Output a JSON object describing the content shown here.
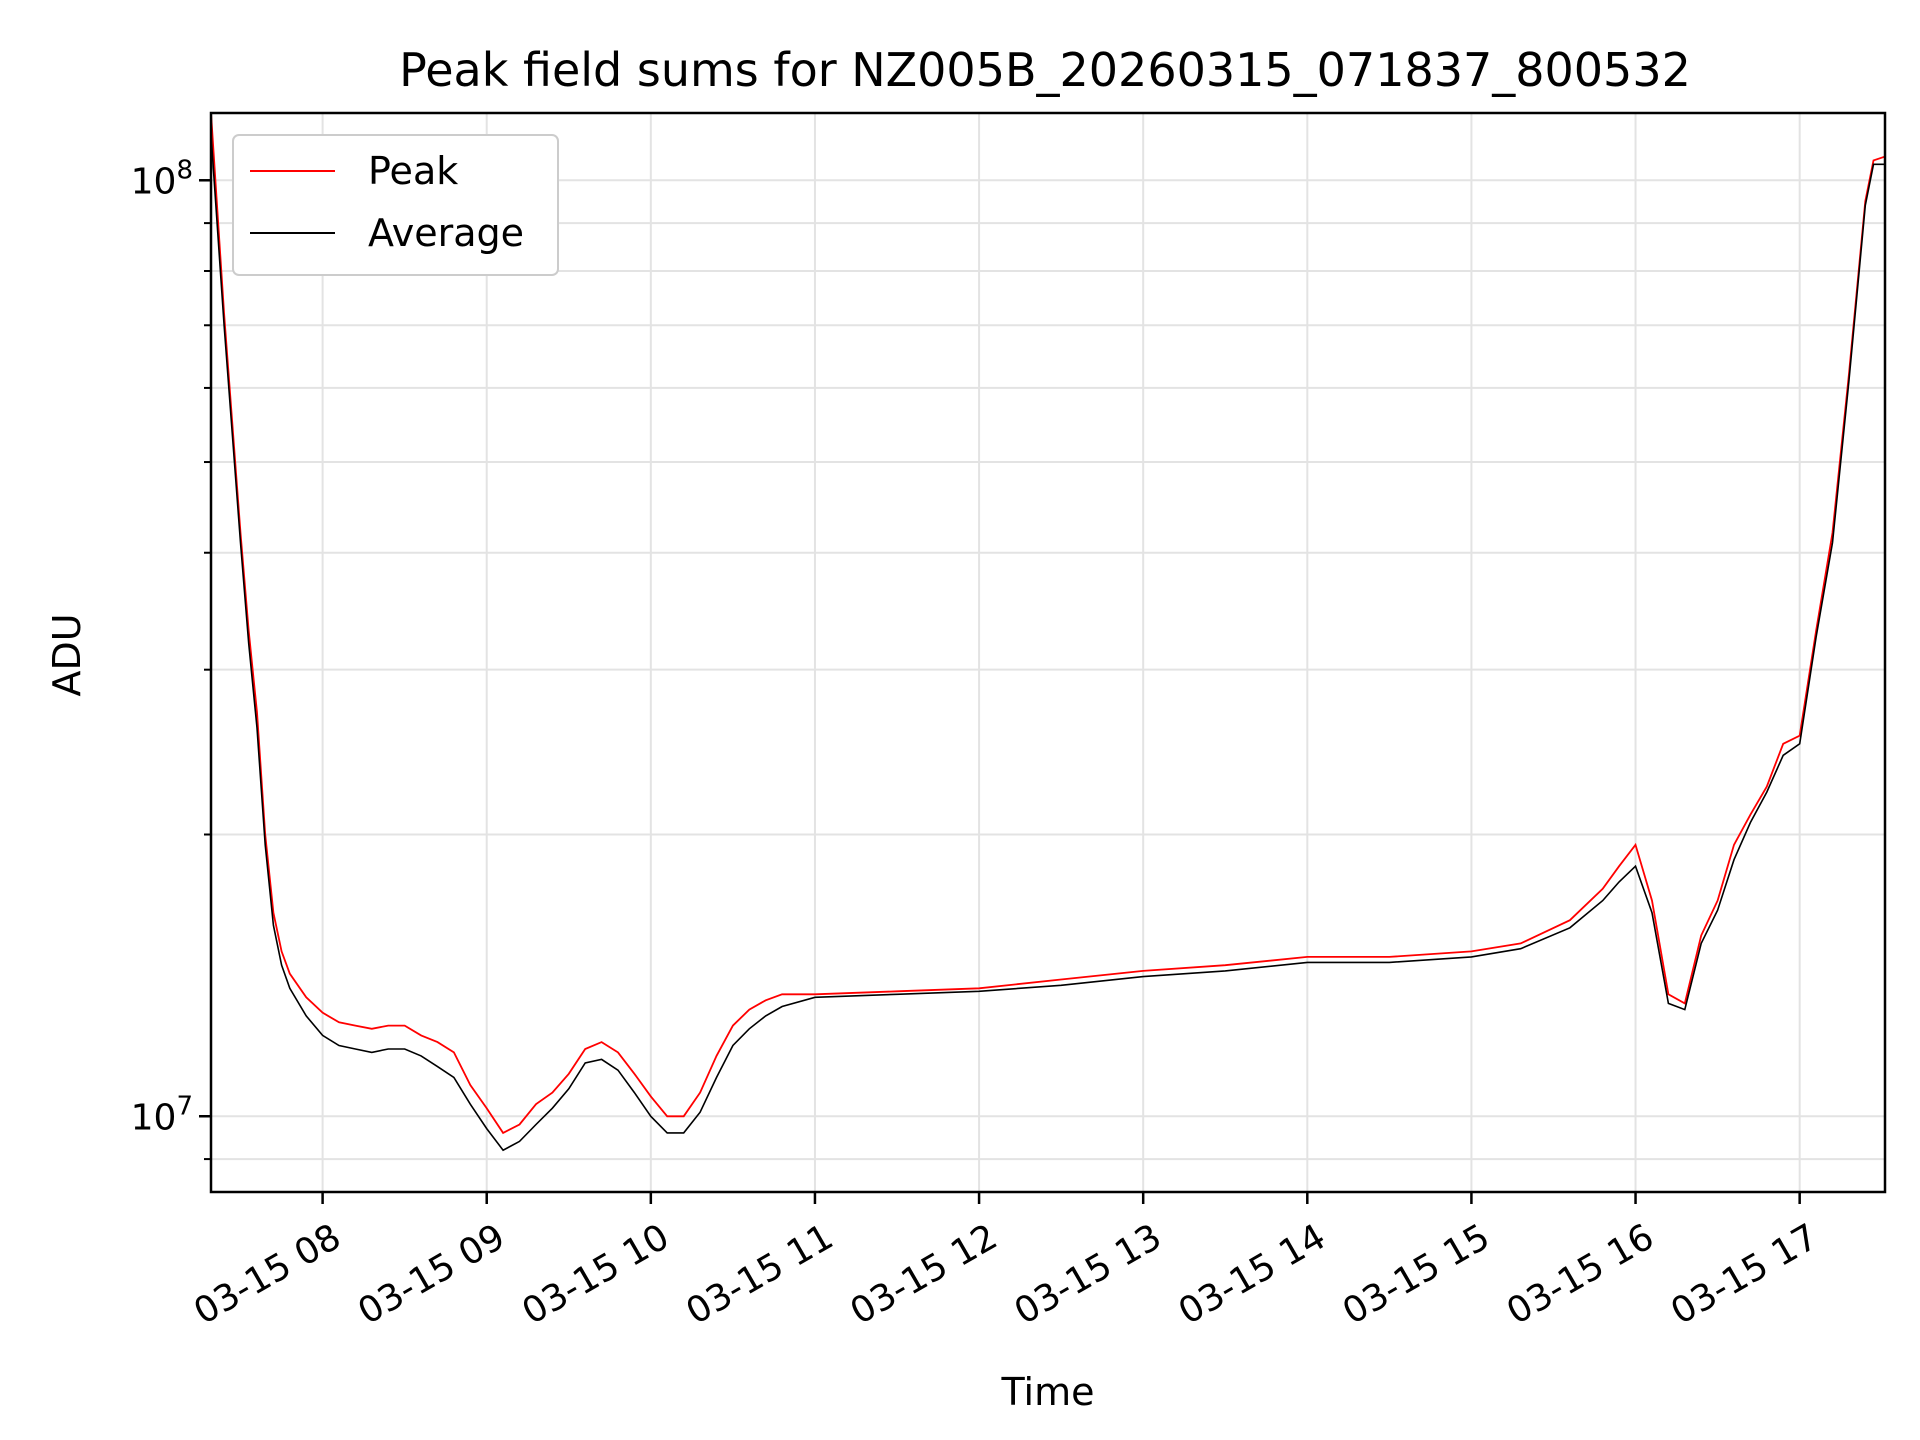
{
  "chart_data": {
    "type": "line",
    "title": "Peak field sums for NZ005B_20260315_071837_800532",
    "xlabel": "Time",
    "ylabel": "ADU",
    "yscale": "log",
    "ylim": [
      8300000,
      118000000
    ],
    "xlim_hours": [
      7.32,
      17.52
    ],
    "grid": true,
    "legend_position": "upper left",
    "x_ticks": [
      {
        "label": "03-15 08",
        "hour": 8
      },
      {
        "label": "03-15 09",
        "hour": 9
      },
      {
        "label": "03-15 10",
        "hour": 10
      },
      {
        "label": "03-15 11",
        "hour": 11
      },
      {
        "label": "03-15 12",
        "hour": 12
      },
      {
        "label": "03-15 13",
        "hour": 13
      },
      {
        "label": "03-15 14",
        "hour": 14
      },
      {
        "label": "03-15 15",
        "hour": 15
      },
      {
        "label": "03-15 16",
        "hour": 16
      },
      {
        "label": "03-15 17",
        "hour": 17
      }
    ],
    "y_ticks": [
      {
        "base": "10",
        "exp": "7",
        "value": 10000000
      },
      {
        "base": "10",
        "exp": "8",
        "value": 100000000
      }
    ],
    "series": [
      {
        "name": "Peak",
        "color": "#ff0000",
        "x_hours": [
          7.32,
          7.4,
          7.5,
          7.55,
          7.6,
          7.65,
          7.7,
          7.75,
          7.8,
          7.9,
          8.0,
          8.1,
          8.2,
          8.3,
          8.4,
          8.5,
          8.6,
          8.7,
          8.8,
          8.9,
          9.0,
          9.1,
          9.2,
          9.3,
          9.4,
          9.5,
          9.6,
          9.7,
          9.8,
          9.9,
          10.0,
          10.1,
          10.2,
          10.3,
          10.4,
          10.5,
          10.6,
          10.7,
          10.8,
          11.0,
          11.5,
          12.0,
          12.5,
          13.0,
          13.5,
          14.0,
          14.5,
          15.0,
          15.3,
          15.6,
          15.8,
          15.9,
          16.0,
          16.1,
          16.2,
          16.3,
          16.4,
          16.5,
          16.6,
          16.7,
          16.8,
          16.9,
          17.0,
          17.1,
          17.2,
          17.3,
          17.4,
          17.45,
          17.52
        ],
        "values": [
          118000000,
          72000000,
          42000000,
          33000000,
          27000000,
          20000000,
          16500000,
          15000000,
          14200000,
          13400000,
          12900000,
          12600000,
          12500000,
          12400000,
          12500000,
          12500000,
          12200000,
          12000000,
          11700000,
          10800000,
          10200000,
          9600000,
          9800000,
          10300000,
          10600000,
          11100000,
          11800000,
          12000000,
          11700000,
          11100000,
          10500000,
          10000000,
          10000000,
          10600000,
          11600000,
          12500000,
          13000000,
          13300000,
          13500000,
          13500000,
          13600000,
          13700000,
          14000000,
          14300000,
          14500000,
          14800000,
          14800000,
          15000000,
          15300000,
          16200000,
          17500000,
          18500000,
          19500000,
          17000000,
          13500000,
          13200000,
          15600000,
          17000000,
          19500000,
          21000000,
          22500000,
          25000000,
          25500000,
          33000000,
          42000000,
          62000000,
          95000000,
          105000000,
          106000000
        ]
      },
      {
        "name": "Average",
        "color": "#000000",
        "x_hours": [
          7.32,
          7.4,
          7.5,
          7.55,
          7.6,
          7.65,
          7.7,
          7.75,
          7.8,
          7.9,
          8.0,
          8.1,
          8.2,
          8.3,
          8.4,
          8.5,
          8.6,
          8.7,
          8.8,
          8.9,
          9.0,
          9.1,
          9.2,
          9.3,
          9.4,
          9.5,
          9.6,
          9.7,
          9.8,
          9.9,
          10.0,
          10.1,
          10.2,
          10.3,
          10.4,
          10.5,
          10.6,
          10.7,
          10.8,
          11.0,
          11.5,
          12.0,
          12.5,
          13.0,
          13.5,
          14.0,
          14.5,
          15.0,
          15.3,
          15.6,
          15.8,
          15.9,
          16.0,
          16.1,
          16.2,
          16.3,
          16.4,
          16.5,
          16.6,
          16.7,
          16.8,
          16.9,
          17.0,
          17.1,
          17.2,
          17.3,
          17.4,
          17.45,
          17.52
        ],
        "values": [
          112000000,
          70000000,
          41000000,
          32000000,
          26000000,
          19500000,
          16000000,
          14500000,
          13700000,
          12800000,
          12200000,
          11900000,
          11800000,
          11700000,
          11800000,
          11800000,
          11600000,
          11300000,
          11000000,
          10300000,
          9700000,
          9200000,
          9400000,
          9800000,
          10200000,
          10700000,
          11400000,
          11500000,
          11200000,
          10600000,
          10000000,
          9600000,
          9600000,
          10100000,
          11000000,
          11900000,
          12400000,
          12800000,
          13100000,
          13400000,
          13500000,
          13600000,
          13800000,
          14100000,
          14300000,
          14600000,
          14600000,
          14800000,
          15100000,
          15900000,
          17000000,
          17800000,
          18500000,
          16500000,
          13200000,
          13000000,
          15300000,
          16600000,
          18800000,
          20600000,
          22200000,
          24300000,
          25000000,
          32500000,
          41000000,
          61000000,
          94000000,
          104000000,
          104000000
        ]
      }
    ]
  }
}
